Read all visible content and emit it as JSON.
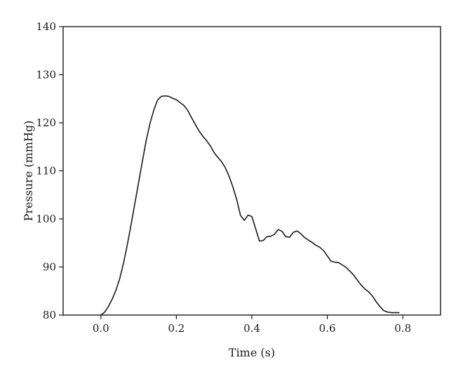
{
  "chart_data": {
    "type": "line",
    "xlabel": "Time (s)",
    "ylabel": "Pressure (mmHg)",
    "xlim": [
      -0.1,
      0.9
    ],
    "ylim": [
      80,
      140
    ],
    "xticks": [
      0.0,
      0.2,
      0.4,
      0.6,
      0.8
    ],
    "xtick_labels": [
      "0.0",
      "0.2",
      "0.4",
      "0.6",
      "0.8"
    ],
    "yticks": [
      80,
      90,
      100,
      110,
      120,
      130,
      140
    ],
    "ytick_labels": [
      "80",
      "90",
      "100",
      "110",
      "120",
      "130",
      "140"
    ],
    "grid": false,
    "line_color": "#1a1a1a",
    "series": [
      {
        "x": [
          0.0,
          0.01,
          0.02,
          0.03,
          0.04,
          0.05,
          0.06,
          0.07,
          0.08,
          0.09,
          0.1,
          0.11,
          0.12,
          0.13,
          0.14,
          0.15,
          0.16,
          0.17,
          0.18,
          0.19,
          0.2,
          0.21,
          0.22,
          0.23,
          0.24,
          0.25,
          0.26,
          0.27,
          0.28,
          0.29,
          0.3,
          0.31,
          0.32,
          0.33,
          0.34,
          0.35,
          0.36,
          0.37,
          0.38,
          0.39,
          0.4,
          0.41,
          0.42,
          0.43,
          0.44,
          0.45,
          0.46,
          0.47,
          0.48,
          0.49,
          0.5,
          0.51,
          0.52,
          0.53,
          0.54,
          0.55,
          0.56,
          0.57,
          0.58,
          0.59,
          0.6,
          0.61,
          0.62,
          0.63,
          0.64,
          0.65,
          0.66,
          0.67,
          0.68,
          0.69,
          0.7,
          0.71,
          0.72,
          0.73,
          0.74,
          0.75,
          0.76,
          0.77,
          0.78,
          0.79
        ],
        "y": [
          80.0,
          80.6,
          81.8,
          83.3,
          85.2,
          87.6,
          90.8,
          94.6,
          98.8,
          103.2,
          107.6,
          112.0,
          116.3,
          119.8,
          122.6,
          124.7,
          125.5,
          125.6,
          125.5,
          125.1,
          124.8,
          124.2,
          123.6,
          122.6,
          121.1,
          119.7,
          118.3,
          117.2,
          116.3,
          115.2,
          113.8,
          112.8,
          111.9,
          110.6,
          108.8,
          106.6,
          104.0,
          100.7,
          99.7,
          100.8,
          100.5,
          98.0,
          95.4,
          95.5,
          96.3,
          96.4,
          96.8,
          97.8,
          97.4,
          96.3,
          96.2,
          97.2,
          97.5,
          96.9,
          96.1,
          95.6,
          95.1,
          94.5,
          94.1,
          93.4,
          92.3,
          91.2,
          91.0,
          90.9,
          90.4,
          89.9,
          89.1,
          88.3,
          87.2,
          86.2,
          85.4,
          84.8,
          83.9,
          82.7,
          81.7,
          80.9,
          80.6,
          80.5,
          80.5,
          80.5
        ]
      }
    ]
  }
}
